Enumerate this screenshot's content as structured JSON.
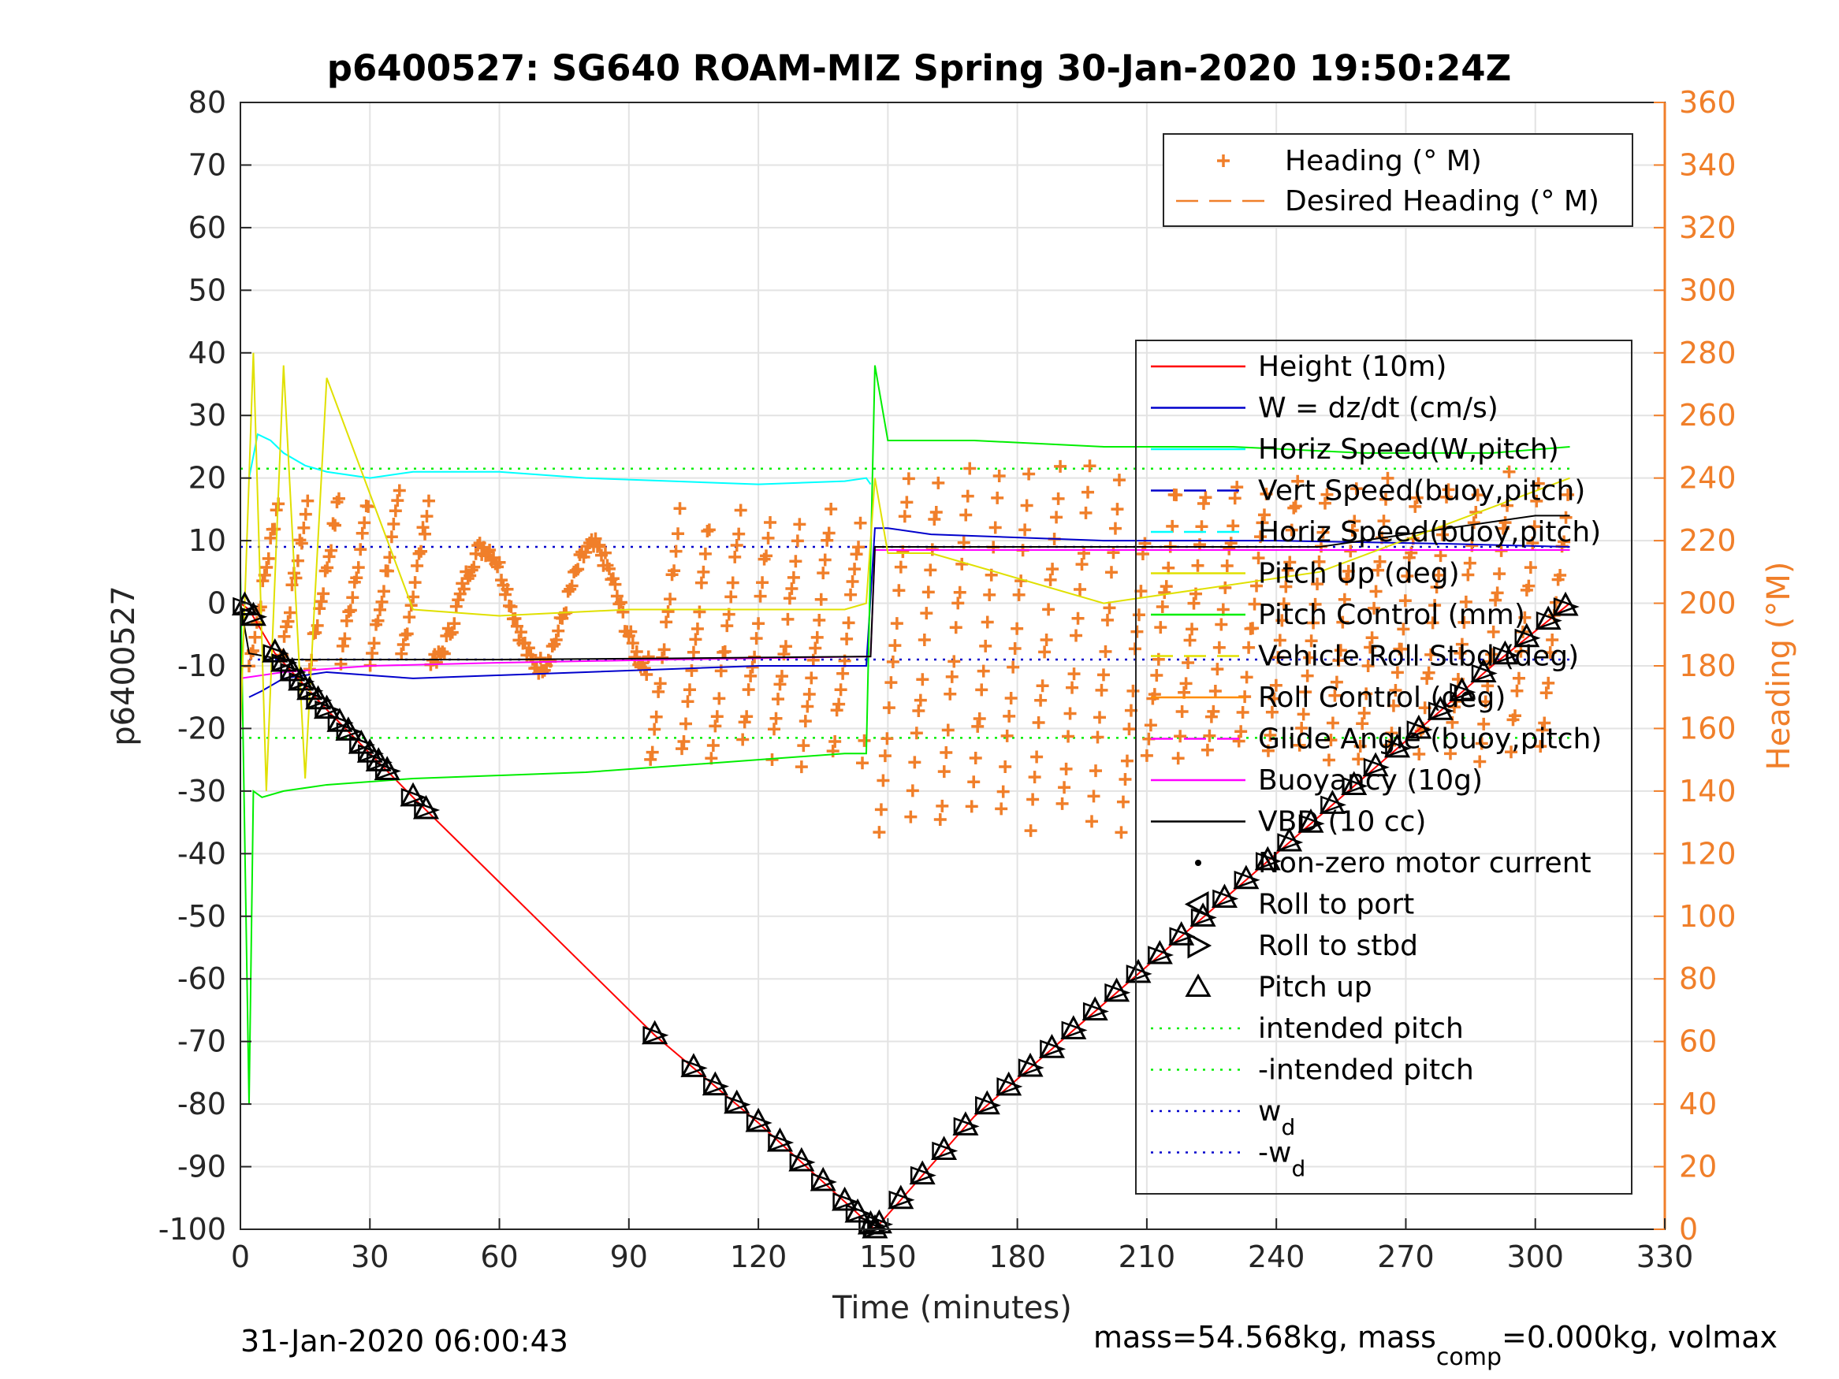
{
  "chart_data": {
    "type": "line",
    "title": "p6400527: SG640 ROAM-MIZ Spring 30-Jan-2020 19:50:24Z",
    "xlabel": "Time (minutes)",
    "ylabel_left": "p6400527",
    "ylabel_right": "Heading (°M)",
    "xlim": [
      0,
      330
    ],
    "ylim_left": [
      -100,
      80
    ],
    "ylim_right": [
      0,
      360
    ],
    "x_ticks": [
      0,
      30,
      60,
      90,
      120,
      150,
      180,
      210,
      240,
      270,
      300,
      330
    ],
    "y_ticks_left": [
      -100,
      -90,
      -80,
      -70,
      -60,
      -50,
      -40,
      -30,
      -20,
      -10,
      0,
      10,
      20,
      30,
      40,
      50,
      60,
      70,
      80
    ],
    "y_ticks_right": [
      0,
      20,
      40,
      60,
      80,
      100,
      120,
      140,
      160,
      180,
      200,
      220,
      240,
      260,
      280,
      300,
      320,
      340,
      360
    ],
    "grid": true,
    "footer_left": "31-Jan-2020 06:00:43",
    "footer_right": {
      "prefix": "mass=54.568kg, mass",
      "sub": "comp",
      "suffix": "=0.000kg, volmax"
    },
    "legend_heading": [
      {
        "label": "Heading (° M)",
        "color": "#f07f2a",
        "style": "plus"
      },
      {
        "label": "Desired Heading (° M)",
        "color": "#f07f2a",
        "style": "dash"
      }
    ],
    "legend_main": [
      {
        "label": "Height (10m)",
        "color": "#ff0000",
        "style": "line"
      },
      {
        "label": "W = dz/dt (cm/s)",
        "color": "#0000cc",
        "style": "line"
      },
      {
        "label": "Horiz Speed(W,pitch)",
        "color": "#00ffff",
        "style": "line"
      },
      {
        "label": "Vert Speed(buoy,pitch)",
        "color": "#0000cc",
        "style": "dash"
      },
      {
        "label": "Horiz Speed(buoy,pitch)",
        "color": "#00ffff",
        "style": "dash"
      },
      {
        "label": "Pitch Up (deg)",
        "color": "#e0e000",
        "style": "line"
      },
      {
        "label": "Pitch Control (mm)",
        "color": "#00ee00",
        "style": "line"
      },
      {
        "label": "Vehicle Roll Stbd (deg)",
        "color": "#e0e000",
        "style": "dash"
      },
      {
        "label": "Roll Control (deg)",
        "color": "#ff8c00",
        "style": "line"
      },
      {
        "label": "Glide Angle (buoy,pitch)",
        "color": "#ff00ff",
        "style": "dash"
      },
      {
        "label": "Buoyancy (10g)",
        "color": "#ff00ff",
        "style": "line"
      },
      {
        "label": "VBD (10 cc)",
        "color": "#000000",
        "style": "line"
      },
      {
        "label": "Non-zero motor current",
        "color": "#000000",
        "style": "dot"
      },
      {
        "label": "Roll to port",
        "color": "#000000",
        "style": "tri-left"
      },
      {
        "label": "Roll to stbd",
        "color": "#000000",
        "style": "tri-right"
      },
      {
        "label": "Pitch up",
        "color": "#000000",
        "style": "tri-up"
      },
      {
        "label": "intended pitch",
        "color": "#00ee00",
        "style": "dot-line"
      },
      {
        "label": "-intended pitch",
        "color": "#00ee00",
        "style": "dot-line"
      },
      {
        "label": "w",
        "sub": "d",
        "color": "#0000cc",
        "style": "dot-line"
      },
      {
        "label": "-w",
        "sub": "d",
        "color": "#0000cc",
        "style": "dot-line"
      }
    ],
    "series": [
      {
        "name": "Height (10m)",
        "color": "#ff0000",
        "axis": "left",
        "x": [
          0,
          2,
          8,
          20,
          30,
          40,
          96,
          120,
          147,
          170,
          200,
          230,
          260,
          290,
          308
        ],
        "y": [
          0,
          -1,
          -8,
          -17,
          -24,
          -31,
          -69,
          -83,
          -100,
          -82,
          -64,
          -46,
          -28,
          -10,
          0
        ]
      },
      {
        "name": "Horiz Speed(W,pitch)",
        "color": "#00ffff",
        "axis": "left",
        "x": [
          2,
          4,
          7,
          10,
          15,
          20,
          30,
          40,
          45,
          60,
          80,
          100,
          120,
          140,
          145,
          146
        ],
        "y": [
          20,
          27,
          26,
          24,
          22,
          21,
          20,
          21,
          21,
          21,
          20,
          19.5,
          19,
          19.5,
          20,
          19
        ]
      },
      {
        "name": "W = dz/dt (cm/s)",
        "color": "#0000cc",
        "axis": "left",
        "x": [
          2,
          5,
          10,
          20,
          40,
          60,
          80,
          100,
          120,
          145,
          147,
          150,
          160,
          200,
          240,
          280,
          308
        ],
        "y": [
          -15,
          -14,
          -12,
          -11,
          -12,
          -11.5,
          -11,
          -10.5,
          -10,
          -10,
          12,
          12,
          11,
          10,
          10,
          9.5,
          9
        ]
      },
      {
        "name": "Pitch Control (mm)",
        "color": "#00ee00",
        "axis": "left",
        "x": [
          0,
          2,
          3,
          5,
          10,
          20,
          40,
          60,
          80,
          100,
          120,
          140,
          145,
          147,
          150,
          170,
          200,
          230,
          260,
          290,
          308
        ],
        "y": [
          5,
          -80,
          -30,
          -31,
          -30,
          -29,
          -28,
          -27.5,
          -27,
          -26,
          -25,
          -24,
          -24,
          38,
          26,
          26,
          25,
          25,
          24,
          24,
          25
        ]
      },
      {
        "name": "Buoyancy (10g)",
        "color": "#ff00ff",
        "axis": "left",
        "x": [
          0,
          10,
          30,
          60,
          100,
          146,
          147,
          200,
          308
        ],
        "y": [
          -12,
          -11,
          -10,
          -9.5,
          -9,
          -8.5,
          8.5,
          8.5,
          8.5
        ]
      },
      {
        "name": "VBD (10 cc)",
        "color": "#000000",
        "axis": "left",
        "x": [
          0,
          2,
          10,
          60,
          100,
          146,
          147,
          150,
          200,
          250,
          300,
          308
        ],
        "y": [
          0,
          -8,
          -9,
          -9,
          -8.8,
          -8.5,
          9,
          9,
          9,
          9,
          14,
          14
        ]
      },
      {
        "name": "Pitch Up (deg)",
        "color": "#e0e000",
        "axis": "left",
        "x": [
          0,
          3,
          6,
          10,
          15,
          20,
          40,
          60,
          90,
          120,
          140,
          145,
          147,
          150,
          160,
          200,
          250,
          308
        ],
        "y": [
          -20,
          40,
          -30,
          38,
          -28,
          36,
          -1,
          -2,
          -1,
          -1,
          -1,
          0,
          20,
          8,
          8,
          0,
          5,
          20
        ]
      }
    ],
    "reference_lines": [
      {
        "name": "intended pitch",
        "y": 21.5,
        "color": "#00ee00"
      },
      {
        "name": "-intended pitch",
        "y": -21.5,
        "color": "#00ee00"
      },
      {
        "name": "w_d",
        "y": 9,
        "color": "#0000cc"
      },
      {
        "name": "-w_d",
        "y": -9,
        "color": "#0000cc"
      }
    ],
    "heading": {
      "color": "#f07f2a",
      "description_free": true,
      "segments": [
        {
          "x0": 2,
          "x1": 45,
          "y_lo": 180,
          "y_hi": 235
        },
        {
          "x0": 45,
          "x1": 95,
          "y_lo": 178,
          "y_hi": 220
        },
        {
          "x0": 95,
          "x1": 145,
          "y_lo": 150,
          "y_hi": 230
        },
        {
          "x0": 148,
          "x1": 210,
          "y_lo": 128,
          "y_hi": 245
        },
        {
          "x0": 210,
          "x1": 308,
          "y_lo": 150,
          "y_hi": 240
        }
      ]
    },
    "markers": {
      "pitch_up_x": [
        1,
        3,
        8,
        10,
        12,
        14,
        16,
        18,
        20,
        23,
        25,
        28,
        30,
        32,
        34,
        40,
        43,
        96,
        105,
        110,
        115,
        120,
        125,
        130,
        135,
        140,
        143,
        146,
        147,
        148,
        153,
        158,
        163,
        168,
        173,
        178,
        183,
        188,
        193,
        198,
        203,
        208,
        213,
        218,
        223,
        228,
        233,
        238,
        243,
        248,
        253,
        258,
        263,
        268,
        273,
        278,
        283,
        288,
        293,
        298,
        303,
        307
      ]
    }
  }
}
